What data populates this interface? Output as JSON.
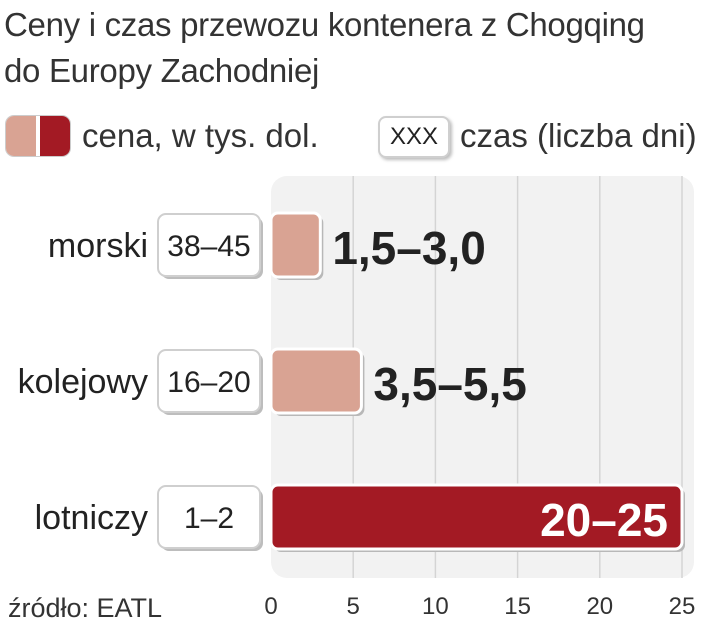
{
  "title_line1": "Ceny i czas przewozu kontenera z Chogqing",
  "title_line2": "do Europy  Zachodniej",
  "legend": {
    "price_label": "cena, w tys. dol.",
    "time_box": "XXX",
    "time_label": "czas (liczba dni)"
  },
  "source": "źródło: EATL",
  "colors": {
    "light_bar": "#d9a393",
    "dark_bar": "#a31a24",
    "plot_bg": "#f2f2f2",
    "grid": "#d4d4d4"
  },
  "chart_data": {
    "type": "bar",
    "orientation": "horizontal",
    "categories": [
      "morski",
      "kolejowy",
      "lotniczy"
    ],
    "value_ranges": [
      [
        1.5,
        3.0
      ],
      [
        3.5,
        5.5
      ],
      [
        20,
        25
      ]
    ],
    "value_labels": [
      "1,5–3,0",
      "3,5–5,5",
      "20–25"
    ],
    "time_labels": [
      "38–45",
      "16–20",
      "1–2"
    ],
    "bar_colors": [
      "light",
      "light",
      "dark"
    ],
    "xlim": [
      0,
      25
    ],
    "xticks": [
      0,
      5,
      10,
      15,
      20,
      25
    ],
    "grid": true
  }
}
